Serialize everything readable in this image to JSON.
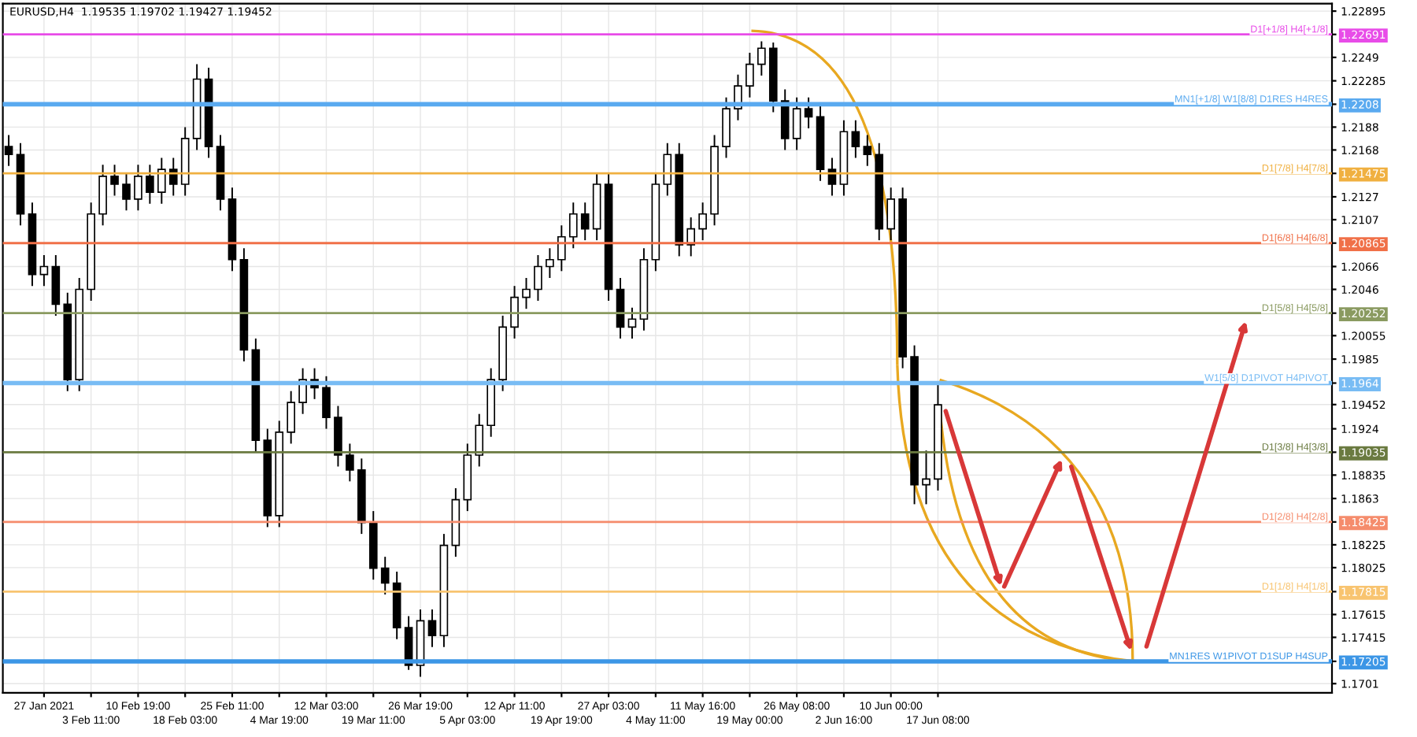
{
  "chart_data": {
    "type": "candlestick",
    "title": "EURUSD,H4  1.19535 1.19702 1.19427 1.19452",
    "categories": [
      null,
      null,
      null,
      "27 Jan 2021",
      null,
      null,
      null,
      "3 Feb 11:00",
      null,
      null,
      null,
      "10 Feb 19:00",
      null,
      null,
      null,
      "18 Feb 03:00",
      null,
      null,
      null,
      "25 Feb 11:00",
      null,
      null,
      null,
      "4 Mar 19:00",
      null,
      null,
      null,
      "12 Mar 03:00",
      null,
      null,
      null,
      "19 Mar 11:00",
      null,
      null,
      null,
      "26 Mar 19:00",
      null,
      null,
      null,
      "5 Apr 03:00",
      null,
      null,
      null,
      "12 Apr 11:00",
      null,
      null,
      null,
      "19 Apr 19:00",
      null,
      null,
      null,
      "27 Apr 03:00",
      null,
      null,
      null,
      "4 May 11:00",
      null,
      null,
      null,
      "11 May 16:00",
      null,
      null,
      null,
      "19 May 00:00",
      null,
      null,
      null,
      "26 May 08:00",
      null,
      null,
      null,
      "2 Jun 16:00",
      null,
      null,
      null,
      "10 Jun 00:00",
      null,
      null,
      null,
      "17 Jun 08:00",
      null,
      null,
      null,
      null,
      null,
      null,
      null,
      null,
      null,
      null,
      null,
      null,
      null,
      null,
      null,
      null,
      null,
      null,
      null,
      null,
      null,
      null,
      null,
      null,
      null,
      null,
      null,
      null,
      null,
      null,
      null,
      null,
      null
    ],
    "ohlc": [
      [
        1.2171,
        1.2181,
        1.2154,
        1.2164
      ],
      [
        1.2164,
        1.2174,
        1.2102,
        1.2112
      ],
      [
        1.2112,
        1.2122,
        1.2049,
        1.2059
      ],
      [
        1.2059,
        1.2076,
        1.2049,
        1.2066
      ],
      [
        1.2066,
        1.2076,
        1.2023,
        1.2033
      ],
      [
        1.2033,
        1.2043,
        1.1957,
        1.1967
      ],
      [
        1.1967,
        1.2056,
        1.1957,
        1.2046
      ],
      [
        1.2046,
        1.2122,
        1.2036,
        1.2112
      ],
      [
        1.2112,
        1.2155,
        1.2102,
        1.2145
      ],
      [
        1.2145,
        1.2155,
        1.2128,
        1.2138
      ],
      [
        1.2138,
        1.2148,
        1.2115,
        1.2125
      ],
      [
        1.2125,
        1.2155,
        1.2115,
        1.2145
      ],
      [
        1.2145,
        1.2155,
        1.2121,
        1.2131
      ],
      [
        1.2131,
        1.2161,
        1.2121,
        1.2151
      ],
      [
        1.2151,
        1.2161,
        1.2128,
        1.2138
      ],
      [
        1.2138,
        1.2188,
        1.2128,
        1.2178
      ],
      [
        1.2178,
        1.2243,
        1.2168,
        1.223
      ],
      [
        1.223,
        1.224,
        1.2161,
        1.2171
      ],
      [
        1.2171,
        1.2181,
        1.2115,
        1.2125
      ],
      [
        1.2125,
        1.2135,
        1.2062,
        1.2072
      ],
      [
        1.2072,
        1.2082,
        1.1983,
        1.1993
      ],
      [
        1.1993,
        1.2003,
        1.1904,
        1.1914
      ],
      [
        1.1914,
        1.1924,
        1.1838,
        1.1848
      ],
      [
        1.1848,
        1.1931,
        1.1838,
        1.1921
      ],
      [
        1.1921,
        1.1957,
        1.1911,
        1.1947
      ],
      [
        1.1947,
        1.1977,
        1.1937,
        1.1967
      ],
      [
        1.1967,
        1.1977,
        1.195,
        1.196
      ],
      [
        1.196,
        1.197,
        1.1924,
        1.1934
      ],
      [
        1.1934,
        1.1944,
        1.1891,
        1.1901
      ],
      [
        1.1901,
        1.1911,
        1.1878,
        1.1888
      ],
      [
        1.1888,
        1.1898,
        1.1832,
        1.1842
      ],
      [
        1.1842,
        1.1852,
        1.1792,
        1.1802
      ],
      [
        1.1802,
        1.1812,
        1.1779,
        1.1789
      ],
      [
        1.1789,
        1.1799,
        1.174,
        1.175
      ],
      [
        1.175,
        1.176,
        1.1713,
        1.1717
      ],
      [
        1.1717,
        1.1766,
        1.1707,
        1.1756
      ],
      [
        1.1756,
        1.1766,
        1.1733,
        1.1743
      ],
      [
        1.1743,
        1.1832,
        1.1733,
        1.1822
      ],
      [
        1.1822,
        1.1872,
        1.1812,
        1.1862
      ],
      [
        1.1862,
        1.1911,
        1.1852,
        1.1901
      ],
      [
        1.1901,
        1.1937,
        1.1891,
        1.1927
      ],
      [
        1.1927,
        1.1977,
        1.1917,
        1.1967
      ],
      [
        1.1967,
        1.2023,
        1.1957,
        1.2013
      ],
      [
        1.2013,
        1.2049,
        1.2003,
        1.2039
      ],
      [
        1.2039,
        1.2056,
        1.2029,
        1.2046
      ],
      [
        1.2046,
        1.2076,
        1.2036,
        1.2066
      ],
      [
        1.2066,
        1.2082,
        1.2056,
        1.2072
      ],
      [
        1.2072,
        1.2102,
        1.2062,
        1.2092
      ],
      [
        1.2092,
        1.2122,
        1.2082,
        1.2112
      ],
      [
        1.2112,
        1.2122,
        1.2089,
        1.2099
      ],
      [
        1.2099,
        1.2148,
        1.2089,
        1.2138
      ],
      [
        1.2138,
        1.2148,
        1.2036,
        1.2046
      ],
      [
        1.2046,
        1.2056,
        1.2003,
        1.2013
      ],
      [
        1.2013,
        1.203,
        1.2003,
        1.202
      ],
      [
        1.202,
        1.2082,
        1.201,
        1.2072
      ],
      [
        1.2072,
        1.2148,
        1.2062,
        1.2138
      ],
      [
        1.2138,
        1.2174,
        1.2128,
        1.2164
      ],
      [
        1.2164,
        1.2174,
        1.2075,
        1.2085
      ],
      [
        1.2085,
        1.2109,
        1.2075,
        1.2099
      ],
      [
        1.2099,
        1.2122,
        1.2089,
        1.2112
      ],
      [
        1.2112,
        1.2181,
        1.2102,
        1.2171
      ],
      [
        1.2171,
        1.2214,
        1.2161,
        1.2204
      ],
      [
        1.2204,
        1.2234,
        1.2194,
        1.2224
      ],
      [
        1.2224,
        1.2253,
        1.2214,
        1.2243
      ],
      [
        1.2243,
        1.2263,
        1.2233,
        1.2257
      ],
      [
        1.2257,
        1.2262,
        1.2201,
        1.2211
      ],
      [
        1.2211,
        1.2221,
        1.2168,
        1.2178
      ],
      [
        1.2178,
        1.2214,
        1.2168,
        1.2204
      ],
      [
        1.2204,
        1.2214,
        1.2187,
        1.2197
      ],
      [
        1.2197,
        1.2207,
        1.2141,
        1.2151
      ],
      [
        1.2151,
        1.2161,
        1.2128,
        1.2138
      ],
      [
        1.2138,
        1.2194,
        1.2128,
        1.2184
      ],
      [
        1.2184,
        1.2194,
        1.2161,
        1.2171
      ],
      [
        1.2171,
        1.2181,
        1.2154,
        1.2164
      ],
      [
        1.2164,
        1.2174,
        1.2089,
        1.2099
      ],
      [
        1.2099,
        1.2135,
        1.2089,
        1.2125
      ],
      [
        1.2125,
        1.2135,
        1.1977,
        1.1987
      ],
      [
        1.1987,
        1.1997,
        1.1858,
        1.1875
      ],
      [
        1.1875,
        1.1905,
        1.1858,
        1.188
      ],
      [
        1.188,
        1.1965,
        1.187,
        1.1945
      ],
      null,
      null,
      null,
      null,
      null,
      null,
      null,
      null,
      null,
      null,
      null,
      null,
      null,
      null,
      null,
      null,
      null,
      null,
      null,
      null,
      null,
      null,
      null,
      null,
      null,
      null,
      null,
      null,
      null,
      null,
      null,
      null,
      null
    ],
    "ylim": [
      1.1693,
      1.2296
    ],
    "yticks": [
      1.22895,
      1.22691,
      1.2249,
      1.22285,
      1.2208,
      1.2188,
      1.2168,
      1.21475,
      1.2127,
      1.2107,
      1.20865,
      1.2066,
      1.2046,
      1.20252,
      1.20055,
      1.1985,
      1.1964,
      1.19452,
      1.1924,
      1.19035,
      1.18835,
      1.1863,
      1.18425,
      1.18225,
      1.18025,
      1.17815,
      1.17615,
      1.17415,
      1.17205,
      1.1701
    ],
    "ref_lines": [
      {
        "axis": "y",
        "value": 1.22691,
        "label": "D1[+1/8] H4[+1/8]",
        "color": "#e84ce8"
      },
      {
        "axis": "y",
        "value": 1.2208,
        "label": "MN1[+1/8] W1[8/8] D1RES H4RES",
        "color": "#5aaaf0"
      },
      {
        "axis": "y",
        "value": 1.21475,
        "label": "D1[7/8] H4[7/8]",
        "color": "#f0b040"
      },
      {
        "axis": "y",
        "value": 1.20865,
        "label": "D1[6/8] H4[6/8]",
        "color": "#f07048"
      },
      {
        "axis": "y",
        "value": 1.20252,
        "label": "D1[5/8] H4[5/8]",
        "color": "#8a9a60"
      },
      {
        "axis": "y",
        "value": 1.1964,
        "label": "W1[5/8] D1PIVOT H4PIVOT",
        "color": "#78bcf4"
      },
      {
        "axis": "y",
        "value": 1.19035,
        "label": "D1[3/8] H4[3/8]",
        "color": "#6a7a40"
      },
      {
        "axis": "y",
        "value": 1.18425,
        "label": "D1[2/8] H4[2/8]",
        "color": "#f58c6c"
      },
      {
        "axis": "y",
        "value": 1.17815,
        "label": "D1[1/8] H4[1/8]",
        "color": "#f8c470"
      },
      {
        "axis": "y",
        "value": 1.17205,
        "label": "MN1RES W1PIVOT D1SUP H4SUP",
        "color": "#3c96e6"
      }
    ],
    "grid": true
  }
}
